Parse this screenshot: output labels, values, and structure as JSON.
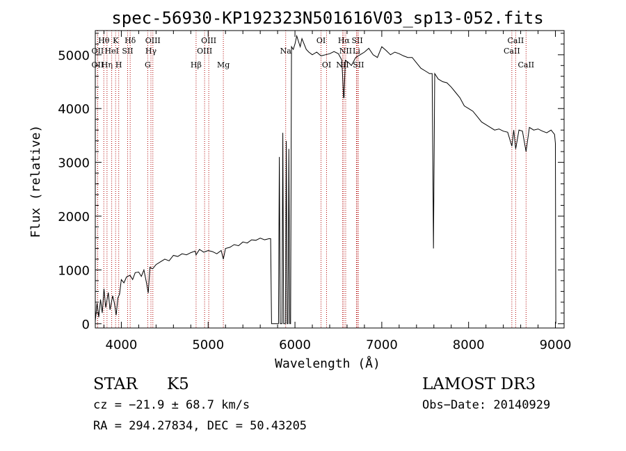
{
  "chart_data": {
    "type": "line",
    "title": "spec-56930-KP192323N501616V03_sp13-052.fits",
    "xlabel": "Wavelength (Å)",
    "ylabel": "Flux (relative)",
    "xlim": [
      3700,
      9100
    ],
    "ylim": [
      -80,
      5450
    ],
    "xticks": [
      4000,
      5000,
      6000,
      7000,
      8000,
      9000
    ],
    "yticks": [
      0,
      1000,
      2000,
      3000,
      4000,
      5000
    ],
    "xtick_labels": [
      "4000",
      "5000",
      "6000",
      "7000",
      "8000",
      "9000"
    ],
    "ytick_labels": [
      "0",
      "1000",
      "2000",
      "3000",
      "4000",
      "5000"
    ],
    "series": [
      {
        "name": "flux",
        "points": [
          [
            3700,
            50
          ],
          [
            3720,
            380
          ],
          [
            3740,
            120
          ],
          [
            3760,
            450
          ],
          [
            3780,
            200
          ],
          [
            3800,
            650
          ],
          [
            3820,
            300
          ],
          [
            3850,
            580
          ],
          [
            3870,
            260
          ],
          [
            3900,
            520
          ],
          [
            3920,
            380
          ],
          [
            3940,
            160
          ],
          [
            3960,
            480
          ],
          [
            3980,
            550
          ],
          [
            4000,
            820
          ],
          [
            4030,
            760
          ],
          [
            4060,
            870
          ],
          [
            4100,
            900
          ],
          [
            4130,
            820
          ],
          [
            4160,
            950
          ],
          [
            4200,
            960
          ],
          [
            4230,
            880
          ],
          [
            4260,
            1000
          ],
          [
            4290,
            760
          ],
          [
            4310,
            570
          ],
          [
            4330,
            1050
          ],
          [
            4360,
            1020
          ],
          [
            4400,
            1100
          ],
          [
            4450,
            1150
          ],
          [
            4500,
            1200
          ],
          [
            4550,
            1170
          ],
          [
            4600,
            1270
          ],
          [
            4650,
            1250
          ],
          [
            4700,
            1300
          ],
          [
            4750,
            1280
          ],
          [
            4800,
            1320
          ],
          [
            4850,
            1350
          ],
          [
            4861,
            1280
          ],
          [
            4900,
            1380
          ],
          [
            4950,
            1330
          ],
          [
            5000,
            1360
          ],
          [
            5050,
            1340
          ],
          [
            5100,
            1300
          ],
          [
            5150,
            1360
          ],
          [
            5175,
            1200
          ],
          [
            5200,
            1400
          ],
          [
            5250,
            1420
          ],
          [
            5300,
            1470
          ],
          [
            5350,
            1450
          ],
          [
            5400,
            1520
          ],
          [
            5450,
            1500
          ],
          [
            5500,
            1560
          ],
          [
            5550,
            1550
          ],
          [
            5600,
            1590
          ],
          [
            5650,
            1560
          ],
          [
            5700,
            1580
          ],
          [
            5720,
            1580
          ],
          [
            5730,
            0
          ],
          [
            5810,
            0
          ],
          [
            5820,
            3100
          ],
          [
            5830,
            0
          ],
          [
            5850,
            0
          ],
          [
            5860,
            3550
          ],
          [
            5870,
            0
          ],
          [
            5890,
            0
          ],
          [
            5900,
            3400
          ],
          [
            5910,
            0
          ],
          [
            5920,
            0
          ],
          [
            5930,
            3250
          ],
          [
            5940,
            0
          ],
          [
            5950,
            0
          ],
          [
            5960,
            5150
          ],
          [
            5980,
            5100
          ],
          [
            6000,
            5200
          ],
          [
            6020,
            5350
          ],
          [
            6040,
            5250
          ],
          [
            6060,
            5150
          ],
          [
            6080,
            5300
          ],
          [
            6100,
            5220
          ],
          [
            6130,
            5100
          ],
          [
            6160,
            5050
          ],
          [
            6200,
            5000
          ],
          [
            6250,
            5050
          ],
          [
            6300,
            4980
          ],
          [
            6350,
            5000
          ],
          [
            6400,
            5020
          ],
          [
            6450,
            5060
          ],
          [
            6500,
            5020
          ],
          [
            6540,
            4900
          ],
          [
            6560,
            4200
          ],
          [
            6565,
            4200
          ],
          [
            6580,
            4900
          ],
          [
            6620,
            4850
          ],
          [
            6650,
            4800
          ],
          [
            6700,
            4950
          ],
          [
            6750,
            5000
          ],
          [
            6800,
            5050
          ],
          [
            6850,
            5120
          ],
          [
            6900,
            5000
          ],
          [
            6950,
            4950
          ],
          [
            7000,
            5150
          ],
          [
            7050,
            5080
          ],
          [
            7100,
            5000
          ],
          [
            7150,
            5050
          ],
          [
            7200,
            5020
          ],
          [
            7250,
            4980
          ],
          [
            7300,
            4950
          ],
          [
            7350,
            4950
          ],
          [
            7400,
            4850
          ],
          [
            7450,
            4750
          ],
          [
            7500,
            4700
          ],
          [
            7550,
            4650
          ],
          [
            7580,
            4650
          ],
          [
            7595,
            1400
          ],
          [
            7610,
            4650
          ],
          [
            7650,
            4550
          ],
          [
            7700,
            4500
          ],
          [
            7750,
            4480
          ],
          [
            7800,
            4400
          ],
          [
            7850,
            4300
          ],
          [
            7900,
            4200
          ],
          [
            7950,
            4050
          ],
          [
            8000,
            4000
          ],
          [
            8050,
            3950
          ],
          [
            8100,
            3850
          ],
          [
            8150,
            3750
          ],
          [
            8200,
            3700
          ],
          [
            8250,
            3650
          ],
          [
            8300,
            3600
          ],
          [
            8350,
            3620
          ],
          [
            8400,
            3580
          ],
          [
            8450,
            3560
          ],
          [
            8498,
            3300
          ],
          [
            8520,
            3600
          ],
          [
            8542,
            3250
          ],
          [
            8580,
            3600
          ],
          [
            8620,
            3580
          ],
          [
            8662,
            3200
          ],
          [
            8700,
            3650
          ],
          [
            8750,
            3600
          ],
          [
            8800,
            3620
          ],
          [
            8850,
            3580
          ],
          [
            8900,
            3550
          ],
          [
            8950,
            3600
          ],
          [
            8990,
            3520
          ],
          [
            9000,
            3350
          ],
          [
            9005,
            0
          ]
        ]
      }
    ],
    "line_markers": [
      {
        "wavelength": 3798,
        "label": "Hθ",
        "row": 1
      },
      {
        "wavelength": 3835,
        "label": "Hη",
        "row": 3
      },
      {
        "wavelength": 3727,
        "label": "OII",
        "row": 2
      },
      {
        "wavelength": 3727,
        "label": "OII",
        "row": 3
      },
      {
        "wavelength": 3889,
        "label": "HeI",
        "row": 2
      },
      {
        "wavelength": 3934,
        "label": "K",
        "row": 1
      },
      {
        "wavelength": 3970,
        "label": "H",
        "row": 3
      },
      {
        "wavelength": 4072,
        "label": "SII",
        "row": 2
      },
      {
        "wavelength": 4102,
        "label": "Hδ",
        "row": 1
      },
      {
        "wavelength": 4304,
        "label": "G",
        "row": 3
      },
      {
        "wavelength": 4341,
        "label": "Hγ",
        "row": 2
      },
      {
        "wavelength": 4363,
        "label": "OIII",
        "row": 1
      },
      {
        "wavelength": 4861,
        "label": "Hβ",
        "row": 3
      },
      {
        "wavelength": 4959,
        "label": "OIII",
        "row": 2
      },
      {
        "wavelength": 5007,
        "label": "OIII",
        "row": 1
      },
      {
        "wavelength": 5175,
        "label": "Mg",
        "row": 3
      },
      {
        "wavelength": 5893,
        "label": "Na",
        "row": 2
      },
      {
        "wavelength": 6300,
        "label": "OI",
        "row": 1
      },
      {
        "wavelength": 6364,
        "label": "OI",
        "row": 3
      },
      {
        "wavelength": 6548,
        "label": "NII",
        "row": 3
      },
      {
        "wavelength": 6563,
        "label": "Hα",
        "row": 1
      },
      {
        "wavelength": 6584,
        "label": "NII",
        "row": 2
      },
      {
        "wavelength": 6708,
        "label": "Li",
        "row": 2
      },
      {
        "wavelength": 6717,
        "label": "SII",
        "row": 1
      },
      {
        "wavelength": 6731,
        "label": "SII",
        "row": 3
      },
      {
        "wavelength": 8498,
        "label": "CaII",
        "row": 2
      },
      {
        "wavelength": 8542,
        "label": "CaII",
        "row": 1
      },
      {
        "wavelength": 8662,
        "label": "CaII",
        "row": 3
      }
    ]
  },
  "info": {
    "object_class": "STAR",
    "subclass": "K5",
    "survey": "LAMOST DR3",
    "cz": "cz = −21.9 ± 68.7 km/s",
    "obs_date": "Obs−Date: 20140929",
    "coords": "RA = 294.27834, DEC =  50.43205"
  }
}
